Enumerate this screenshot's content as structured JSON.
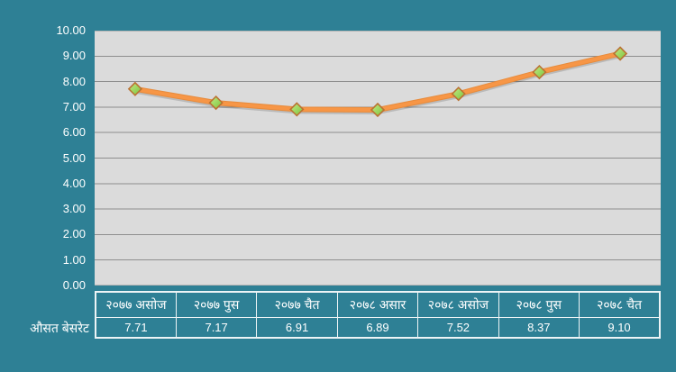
{
  "chart_data": {
    "type": "line",
    "title": "",
    "xlabel": "",
    "ylabel": "",
    "categories": [
      "२०७७ असोज",
      "२०७७ पुस",
      "२०७७ चैत",
      "२०७८ असार",
      "२०७८ असोज",
      "२०७८ पुस",
      "२०७८ चैत"
    ],
    "series": [
      {
        "name": "औसत बेसरेट",
        "values": [
          7.71,
          7.17,
          6.91,
          6.89,
          7.52,
          8.37,
          9.1
        ],
        "value_labels": [
          "7.71",
          "7.17",
          "6.91",
          "6.89",
          "7.52",
          "8.37",
          "9.10"
        ]
      }
    ],
    "ylim": [
      0,
      10
    ],
    "ytick_step": 1,
    "ytick_labels": [
      "0.00",
      "1.00",
      "2.00",
      "3.00",
      "4.00",
      "5.00",
      "6.00",
      "7.00",
      "8.00",
      "9.00",
      "10.00"
    ],
    "grid": true,
    "legend_position": "none",
    "data_table_shown": true,
    "colors": {
      "chart_background": "#2E8095",
      "plot_background": "#DBDBDB",
      "gridline": "#8E8E8E",
      "line": "#F79646",
      "line_edge": "#E78B3C",
      "marker_fill_light": "#C2EB86",
      "marker_fill_dark": "#7CC33C",
      "marker_border": "#BA7232",
      "text": "#FFFFFF",
      "table_border": "#EDF4F6"
    },
    "marker_shape": "diamond"
  }
}
